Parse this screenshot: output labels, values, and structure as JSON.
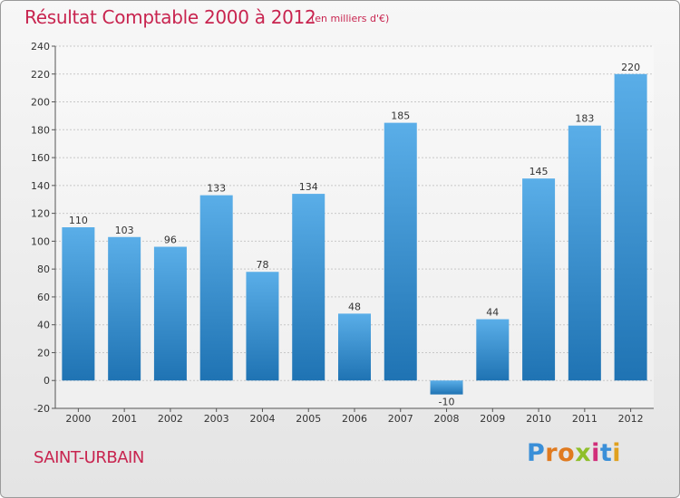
{
  "header": {
    "title": "Résultat Comptable 2000 à 2012",
    "subtitle": "(en milliers d'€)"
  },
  "footer": {
    "commune": "SAINT-URBAIN",
    "logo_letters": [
      "P",
      "r",
      "o",
      "x",
      "i",
      "t",
      "i"
    ],
    "logo_colors": [
      "#3a8fd8",
      "#e07a1f",
      "#e07a1f",
      "#8fbf2a",
      "#d12e7a",
      "#3a8fd8",
      "#e0a11f"
    ]
  },
  "colors": {
    "accent": "#c8244f",
    "bar_top": "#5aaee8",
    "bar_bottom": "#1f73b3",
    "grid": "#c8c8c8"
  },
  "chart_data": {
    "type": "bar",
    "title": "Résultat Comptable 2000 à 2012",
    "subtitle": "(en milliers d'€)",
    "xlabel": "",
    "ylabel": "",
    "categories": [
      "2000",
      "2001",
      "2002",
      "2003",
      "2004",
      "2005",
      "2006",
      "2007",
      "2008",
      "2009",
      "2010",
      "2011",
      "2012"
    ],
    "values": [
      110,
      103,
      96,
      133,
      78,
      134,
      48,
      185,
      -10,
      44,
      145,
      183,
      220
    ],
    "data_labels": [
      "110",
      "103",
      "96",
      "133",
      "78",
      "134",
      "48",
      "185",
      "-10",
      "44",
      "145",
      "183",
      "220"
    ],
    "ylim": [
      -20,
      240
    ],
    "yticks": [
      -20,
      0,
      20,
      40,
      60,
      80,
      100,
      120,
      140,
      160,
      180,
      200,
      220,
      240
    ],
    "grid": true,
    "legend": "none"
  }
}
